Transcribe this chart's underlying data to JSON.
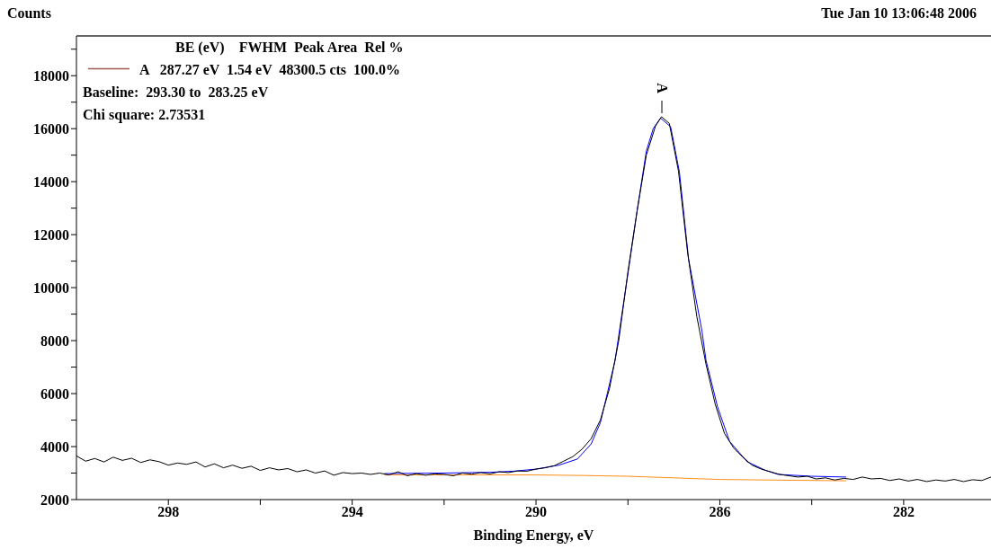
{
  "chart_data": {
    "type": "line",
    "subtitle": "Tue Jan 10 13:06:48 2006",
    "xlabel": "Binding Energy, eV",
    "ylabel": "Counts",
    "xlim": [
      300,
      280.1
    ],
    "ylim": [
      2000,
      19500
    ],
    "xticks": [
      298,
      {
        "value": 296,
        "label": null
      },
      294,
      {
        "value": 292,
        "label": null
      },
      290,
      {
        "value": 288,
        "label": null
      },
      286,
      {
        "value": 284,
        "label": null
      },
      282
    ],
    "yticks": [
      2000,
      {
        "value": 3000,
        "label": null
      },
      4000,
      {
        "value": 5000,
        "label": null
      },
      6000,
      {
        "value": 7000,
        "label": null
      },
      8000,
      {
        "value": 9000,
        "label": null
      },
      10000,
      {
        "value": 11000,
        "label": null
      },
      12000,
      {
        "value": 13000,
        "label": null
      },
      14000,
      {
        "value": 15000,
        "label": null
      },
      16000,
      {
        "value": 17000,
        "label": null
      },
      18000,
      {
        "value": 19000,
        "label": null
      }
    ],
    "annotations": [
      "BE (eV)    FWHM  Peak Area  Rel %",
      "A   287.27 eV  1.54 eV  48300.5 cts  100.0%",
      "Baseline:  293.30 to  283.25 eV",
      "Chi square: 2.73531",
      {
        "text": "A",
        "x": 287.27,
        "y": 16450
      }
    ],
    "series": [
      {
        "color": "#000000",
        "x": [
          300.0,
          299.8,
          299.6,
          299.4,
          299.2,
          299.0,
          298.8,
          298.6,
          298.4,
          298.2,
          298.0,
          297.8,
          297.6,
          297.4,
          297.2,
          297.0,
          296.8,
          296.6,
          296.4,
          296.2,
          296.0,
          295.8,
          295.6,
          295.4,
          295.2,
          295.0,
          294.8,
          294.6,
          294.4,
          294.2,
          294.0,
          293.8,
          293.6,
          293.4,
          293.2,
          293.0,
          292.8,
          292.6,
          292.4,
          292.2,
          292.0,
          291.8,
          291.6,
          291.4,
          291.2,
          291.0,
          290.8,
          290.6,
          290.4,
          290.2,
          290.0,
          289.8,
          289.6,
          289.4,
          289.2,
          289.0,
          288.8,
          288.6,
          288.4,
          288.2,
          288.0,
          287.8,
          287.6,
          287.4,
          287.27,
          287.1,
          286.9,
          286.7,
          286.5,
          286.3,
          286.1,
          285.9,
          285.7,
          285.5,
          285.3,
          285.1,
          284.9,
          284.7,
          284.5,
          284.3,
          284.1,
          283.9,
          283.7,
          283.5,
          283.3,
          283.1,
          282.9,
          282.7,
          282.5,
          282.3,
          282.1,
          281.9,
          281.7,
          281.5,
          281.3,
          281.1,
          280.9,
          280.7,
          280.5,
          280.3,
          280.1
        ],
        "values": [
          3650,
          3450,
          3550,
          3420,
          3600,
          3480,
          3560,
          3400,
          3500,
          3430,
          3300,
          3380,
          3330,
          3420,
          3230,
          3350,
          3200,
          3300,
          3180,
          3260,
          3100,
          3200,
          3120,
          3170,
          3050,
          3120,
          3000,
          3080,
          2920,
          3020,
          2980,
          3000,
          2950,
          3000,
          2930,
          3050,
          2900,
          2980,
          2920,
          2970,
          2950,
          2900,
          3000,
          2960,
          3020,
          2970,
          3050,
          3020,
          3080,
          3070,
          3150,
          3200,
          3280,
          3450,
          3620,
          3900,
          4300,
          5000,
          6200,
          8000,
          10600,
          12900,
          15000,
          16100,
          16450,
          16200,
          14400,
          11300,
          8900,
          7100,
          5600,
          4500,
          3950,
          3600,
          3300,
          3150,
          3050,
          2950,
          2900,
          2850,
          2880,
          2780,
          2820,
          2740,
          2800,
          2760,
          2850,
          2780,
          2800,
          2720,
          2780,
          2700,
          2760,
          2680,
          2740,
          2700,
          2760,
          2680,
          2750,
          2720,
          2850
        ]
      },
      {
        "color": "#0000ff",
        "x": [
          293.3,
          292,
          291,
          290.5,
          290,
          289.5,
          289.1,
          288.8,
          288.6,
          288.45,
          288.28,
          287.99,
          287.8,
          287.6,
          287.45,
          287.29,
          287.07,
          286.88,
          286.68,
          286.39,
          286.3,
          286.05,
          285.79,
          285.4,
          285.0,
          284.73,
          284.0,
          283.25
        ],
        "values": [
          2980,
          3000,
          3030,
          3070,
          3150,
          3300,
          3530,
          4100,
          4900,
          6000,
          7250,
          10640,
          12900,
          15150,
          16000,
          16400,
          16070,
          14370,
          11080,
          8370,
          7250,
          5500,
          4200,
          3420,
          3100,
          2950,
          2880,
          2850
        ]
      },
      {
        "color": "#ff8c1a",
        "x": [
          293.3,
          290,
          289,
          288,
          287,
          286,
          285,
          283.25
        ],
        "values": [
          2930,
          2930,
          2910,
          2880,
          2820,
          2760,
          2740,
          2710
        ]
      }
    ]
  }
}
